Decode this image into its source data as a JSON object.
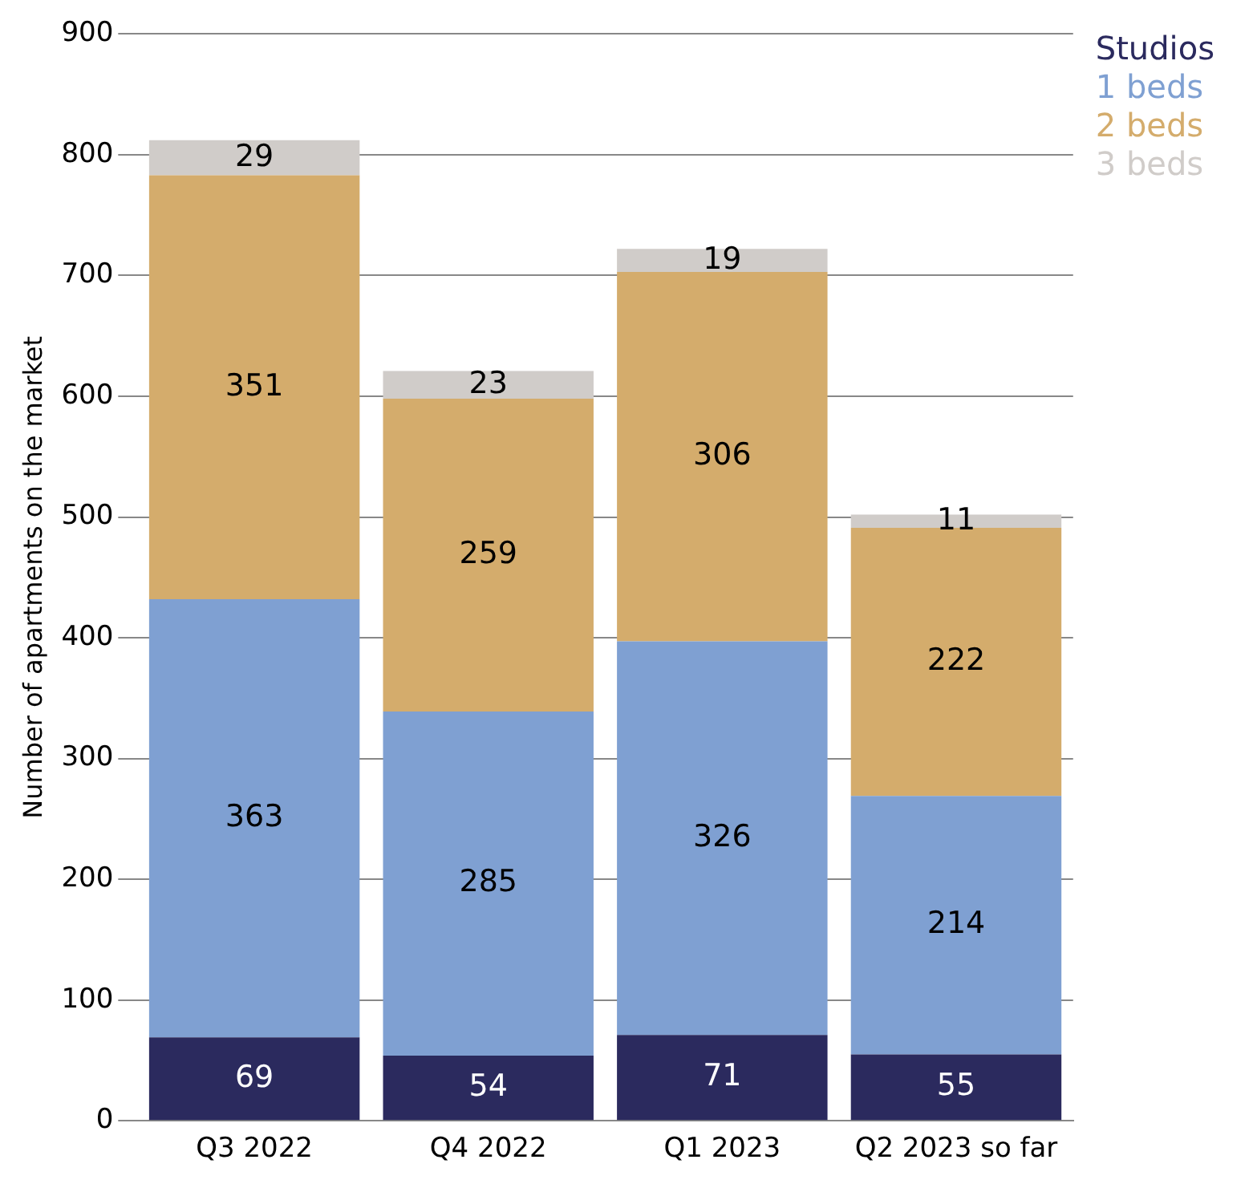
{
  "chart_data": {
    "type": "bar",
    "stacked": true,
    "ylabel": "Number of apartments on the market",
    "categories": [
      "Q3 2022",
      "Q4 2022",
      "Q1 2023",
      "Q2 2023 so far"
    ],
    "series": [
      {
        "name": "Studios",
        "color": "#2b2a5e",
        "values": [
          69,
          54,
          71,
          55
        ]
      },
      {
        "name": "1 beds",
        "color": "#7fa0d2",
        "values": [
          363,
          285,
          326,
          214
        ]
      },
      {
        "name": "2 beds",
        "color": "#d4ac6c",
        "values": [
          351,
          259,
          306,
          222
        ]
      },
      {
        "name": "3 beds",
        "color": "#d0ccc9",
        "values": [
          29,
          23,
          19,
          11
        ]
      }
    ],
    "ylim": [
      0,
      900
    ],
    "yticks": [
      0,
      100,
      200,
      300,
      400,
      500,
      600,
      700,
      800,
      900
    ],
    "grid": "y",
    "legend": "top right",
    "data_labels": true
  }
}
